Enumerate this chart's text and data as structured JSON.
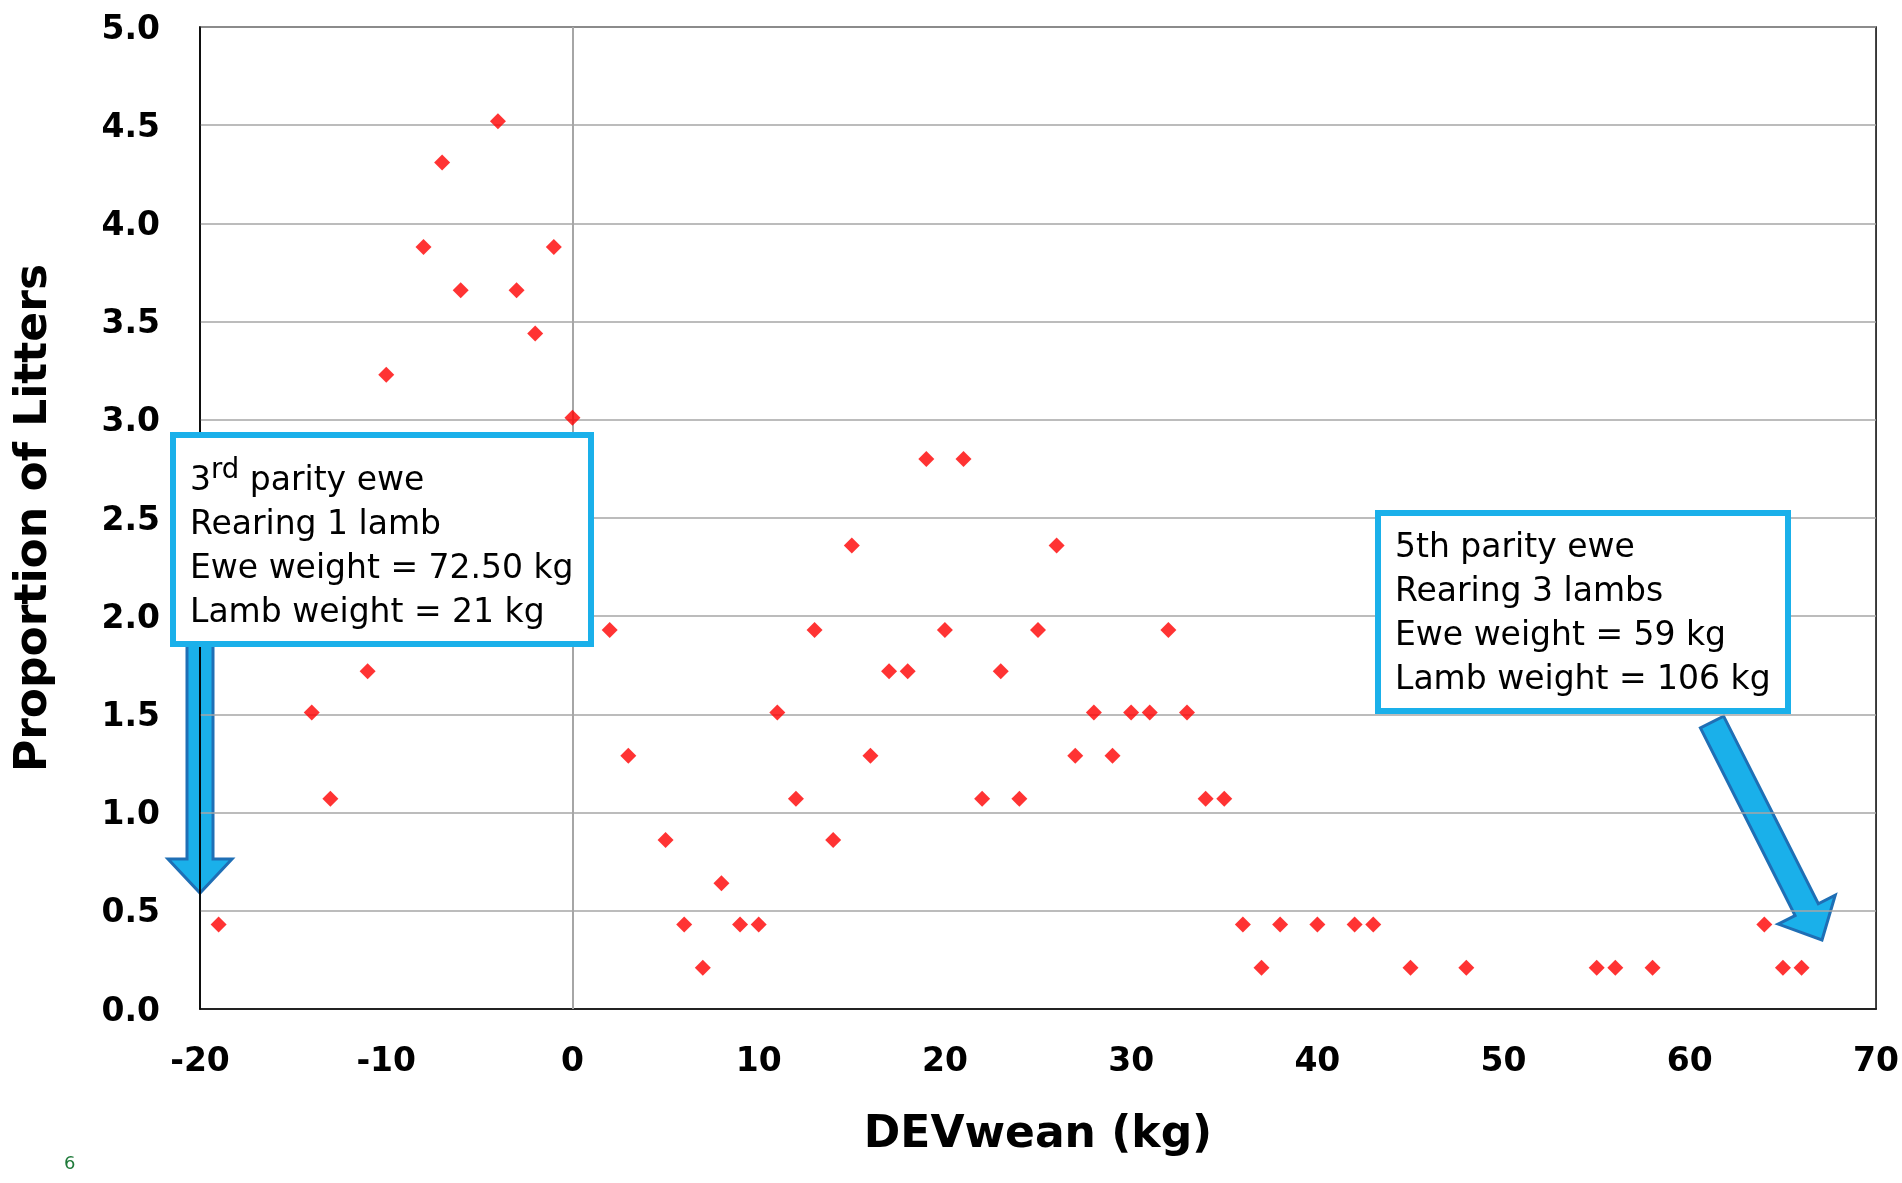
{
  "chart_data": {
    "type": "scatter",
    "xlabel": "DEVwean (kg)",
    "ylabel": "Proportion of Litters",
    "x": [
      -19,
      -14,
      -13,
      -11,
      -10,
      -8,
      -7,
      -6,
      -4,
      -3,
      -2,
      -1,
      0,
      2,
      3,
      5,
      6,
      7,
      8,
      9,
      10,
      11,
      12,
      13,
      14,
      15,
      16,
      17,
      18,
      19,
      20,
      21,
      22,
      23,
      24,
      25,
      26,
      27,
      28,
      29,
      30,
      31,
      32,
      33,
      34,
      35,
      36,
      37,
      38,
      40,
      42,
      43,
      45,
      48,
      55,
      56,
      58,
      64,
      65,
      66
    ],
    "series": [
      {
        "color": "#ff0000",
        "values": [
          0.43,
          1.51,
          1.07,
          1.72,
          3.23,
          3.88,
          4.31,
          3.66,
          4.52,
          3.66,
          3.44,
          3.88,
          3.01,
          1.93,
          1.29,
          0.86,
          0.43,
          0.21,
          0.64,
          0.43,
          0.43,
          1.51,
          1.07,
          1.93,
          0.86,
          2.36,
          1.29,
          1.72,
          1.72,
          2.8,
          1.93,
          2.8,
          1.07,
          1.72,
          1.07,
          1.93,
          2.36,
          1.29,
          1.51,
          1.29,
          1.51,
          1.51,
          1.93,
          1.51,
          1.07,
          1.07,
          0.43,
          0.21,
          0.43,
          0.43,
          0.43,
          0.43,
          0.21,
          0.21,
          0.21,
          0.21,
          0.21,
          0.43,
          0.21,
          0.21
        ]
      }
    ],
    "xlim": [
      -20,
      70
    ],
    "xticks": [
      -20,
      -10,
      0,
      10,
      20,
      30,
      40,
      50,
      60,
      70
    ],
    "ylim": [
      0,
      5
    ],
    "yticks": [
      {
        "value": 0,
        "label": "0.0"
      },
      {
        "value": 0.5,
        "label": "0.5"
      },
      {
        "value": 1,
        "label": "1.0"
      },
      {
        "value": 1.5,
        "label": "1.5"
      },
      {
        "value": 2,
        "label": "2.0"
      },
      {
        "value": 2.5,
        "label": "2.5"
      },
      {
        "value": 3,
        "label": "3.0"
      },
      {
        "value": 3.5,
        "label": "3.5"
      },
      {
        "value": 4,
        "label": "4.0"
      },
      {
        "value": 4.5,
        "label": "4.5"
      },
      {
        "value": 5,
        "label": "5.0"
      }
    ],
    "grid": "y",
    "marker": "diamond",
    "ref_lines": [
      {
        "axis": "x",
        "value": 0,
        "color": "#a6a6a6"
      }
    ],
    "annotations": [
      "3$^{rd}$  parity ewe\nRearing 1 lamb\nEwe weight = 72.50 kg\nLamb weight = 21 kg",
      "5th parity ewe\nRearing 3 lambs\nEwe weight = 59 kg\nLamb weight = 106 kg",
      "6"
    ]
  }
}
